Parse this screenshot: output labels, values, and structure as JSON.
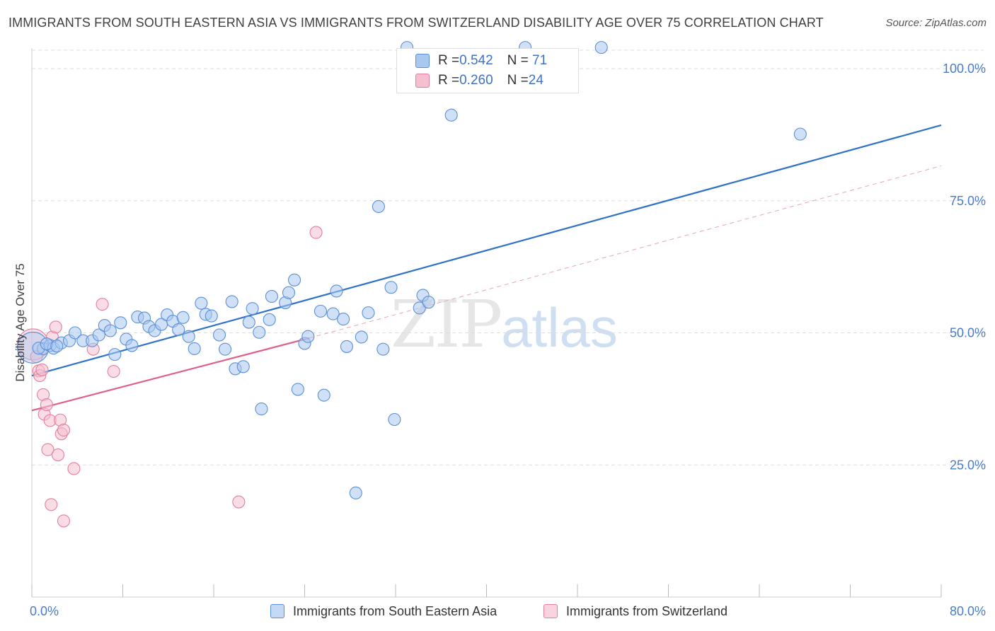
{
  "title": "IMMIGRANTS FROM SOUTH EASTERN ASIA VS IMMIGRANTS FROM SWITZERLAND DISABILITY AGE OVER 75 CORRELATION CHART",
  "source": "Source: ZipAtlas.com",
  "watermark": {
    "zip": "ZIP",
    "atlas": "atlas"
  },
  "colors": {
    "blue_fill": "#a9c8f0",
    "blue_stroke": "#5b8fd6",
    "blue_line": "#2f72c8",
    "pink_fill": "#f5bfd0",
    "pink_stroke": "#e27fa0",
    "pink_line": "#e0608c",
    "grid": "#dddddd",
    "tick_text": "#4a7bc8"
  },
  "legend": {
    "rows": [
      {
        "r_label": "R = ",
        "r_value": "0.542",
        "n_label": "N = ",
        "n_value": " 71"
      },
      {
        "r_label": "R = ",
        "r_value": "0.260",
        "n_label": "N = ",
        "n_value": "24"
      }
    ]
  },
  "chart_data": {
    "type": "scatter",
    "title": "IMMIGRANTS FROM SOUTH EASTERN ASIA VS IMMIGRANTS FROM SWITZERLAND DISABILITY AGE OVER 75 CORRELATION CHART",
    "xlabel": "",
    "ylabel": "Disability Age Over 75",
    "xlim": [
      0,
      80
    ],
    "ylim": [
      0,
      105
    ],
    "x_tick_labels": [
      "0.0%",
      "80.0%"
    ],
    "y_ticks": [
      25,
      50,
      75,
      100
    ],
    "y_tick_labels": [
      "25.0%",
      "50.0%",
      "75.0%",
      "100.0%"
    ],
    "grid": true,
    "legend_position": "bottom",
    "series": [
      {
        "name": "Immigrants from South Eastern Asia",
        "color": "#a9c8f0",
        "r": 0.542,
        "n": 71,
        "trend": {
          "x": [
            0,
            80
          ],
          "y": [
            41.9,
            89.3
          ]
        },
        "points": [
          {
            "x": 0.1,
            "y": 47.2,
            "big": true
          },
          {
            "x": 1.0,
            "y": 47.0
          },
          {
            "x": 1.6,
            "y": 47.6
          },
          {
            "x": 1.9,
            "y": 47.1
          },
          {
            "x": 2.6,
            "y": 48.1
          },
          {
            "x": 3.3,
            "y": 48.5
          },
          {
            "x": 3.8,
            "y": 50.0
          },
          {
            "x": 4.5,
            "y": 48.5
          },
          {
            "x": 5.3,
            "y": 48.5
          },
          {
            "x": 5.9,
            "y": 49.6
          },
          {
            "x": 6.4,
            "y": 51.4
          },
          {
            "x": 6.9,
            "y": 50.4
          },
          {
            "x": 7.3,
            "y": 45.9
          },
          {
            "x": 7.8,
            "y": 51.9
          },
          {
            "x": 8.3,
            "y": 48.8
          },
          {
            "x": 8.8,
            "y": 47.6
          },
          {
            "x": 9.3,
            "y": 53.0
          },
          {
            "x": 9.9,
            "y": 52.8
          },
          {
            "x": 10.3,
            "y": 51.2
          },
          {
            "x": 10.8,
            "y": 50.4
          },
          {
            "x": 11.4,
            "y": 51.6
          },
          {
            "x": 11.9,
            "y": 53.4
          },
          {
            "x": 12.4,
            "y": 52.2
          },
          {
            "x": 12.9,
            "y": 50.6
          },
          {
            "x": 13.3,
            "y": 52.9
          },
          {
            "x": 13.8,
            "y": 49.3
          },
          {
            "x": 14.3,
            "y": 47.0
          },
          {
            "x": 14.9,
            "y": 55.6
          },
          {
            "x": 15.3,
            "y": 53.5
          },
          {
            "x": 15.8,
            "y": 53.2
          },
          {
            "x": 16.5,
            "y": 49.6
          },
          {
            "x": 17.0,
            "y": 46.9
          },
          {
            "x": 17.6,
            "y": 55.9
          },
          {
            "x": 17.9,
            "y": 43.2
          },
          {
            "x": 18.6,
            "y": 43.6
          },
          {
            "x": 19.1,
            "y": 52.0
          },
          {
            "x": 19.4,
            "y": 54.6
          },
          {
            "x": 20.0,
            "y": 50.1
          },
          {
            "x": 20.2,
            "y": 35.6
          },
          {
            "x": 20.9,
            "y": 52.5
          },
          {
            "x": 21.1,
            "y": 56.9
          },
          {
            "x": 22.3,
            "y": 55.7
          },
          {
            "x": 22.6,
            "y": 57.6
          },
          {
            "x": 23.1,
            "y": 60.0
          },
          {
            "x": 23.4,
            "y": 39.3
          },
          {
            "x": 24.0,
            "y": 48.0
          },
          {
            "x": 24.3,
            "y": 49.3
          },
          {
            "x": 25.4,
            "y": 54.1
          },
          {
            "x": 25.7,
            "y": 38.2
          },
          {
            "x": 26.5,
            "y": 53.6
          },
          {
            "x": 26.8,
            "y": 57.9
          },
          {
            "x": 27.4,
            "y": 52.6
          },
          {
            "x": 27.7,
            "y": 47.4
          },
          {
            "x": 28.5,
            "y": 19.7
          },
          {
            "x": 29.0,
            "y": 49.2
          },
          {
            "x": 29.6,
            "y": 53.8
          },
          {
            "x": 30.5,
            "y": 73.9
          },
          {
            "x": 30.9,
            "y": 46.9
          },
          {
            "x": 31.6,
            "y": 58.6
          },
          {
            "x": 31.9,
            "y": 33.6
          },
          {
            "x": 33.0,
            "y": 104.0
          },
          {
            "x": 34.1,
            "y": 54.7
          },
          {
            "x": 34.4,
            "y": 57.1
          },
          {
            "x": 34.9,
            "y": 55.8
          },
          {
            "x": 36.9,
            "y": 91.2
          },
          {
            "x": 43.4,
            "y": 104.0
          },
          {
            "x": 50.1,
            "y": 104.0
          },
          {
            "x": 67.6,
            "y": 87.6
          },
          {
            "x": 0.6,
            "y": 47.1
          },
          {
            "x": 1.3,
            "y": 47.9
          },
          {
            "x": 2.2,
            "y": 47.5
          }
        ]
      },
      {
        "name": "Immigrants from Switzerland",
        "color": "#f5bfd0",
        "r": 0.26,
        "n": 24,
        "trend": {
          "x": [
            0,
            24.4
          ],
          "y": [
            35.3,
            49.0
          ]
        },
        "trend_dashed": {
          "x": [
            24.4,
            80
          ],
          "y": [
            49.0,
            81.6
          ]
        },
        "points": [
          {
            "x": 0.1,
            "y": 47.8,
            "big": true
          },
          {
            "x": 0.4,
            "y": 45.5
          },
          {
            "x": 0.6,
            "y": 42.8
          },
          {
            "x": 0.7,
            "y": 41.9
          },
          {
            "x": 0.9,
            "y": 43.0
          },
          {
            "x": 1.0,
            "y": 38.3
          },
          {
            "x": 1.1,
            "y": 34.6
          },
          {
            "x": 1.3,
            "y": 36.4
          },
          {
            "x": 1.4,
            "y": 27.9
          },
          {
            "x": 1.6,
            "y": 33.4
          },
          {
            "x": 1.7,
            "y": 17.5
          },
          {
            "x": 1.8,
            "y": 49.2
          },
          {
            "x": 2.1,
            "y": 51.1
          },
          {
            "x": 2.3,
            "y": 26.9
          },
          {
            "x": 2.5,
            "y": 33.5
          },
          {
            "x": 2.6,
            "y": 30.9
          },
          {
            "x": 2.8,
            "y": 31.6
          },
          {
            "x": 2.8,
            "y": 14.4
          },
          {
            "x": 3.7,
            "y": 24.3
          },
          {
            "x": 5.4,
            "y": 46.9
          },
          {
            "x": 6.2,
            "y": 55.4
          },
          {
            "x": 7.2,
            "y": 42.7
          },
          {
            "x": 18.2,
            "y": 18.0
          },
          {
            "x": 25.0,
            "y": 69.0
          }
        ]
      }
    ]
  }
}
